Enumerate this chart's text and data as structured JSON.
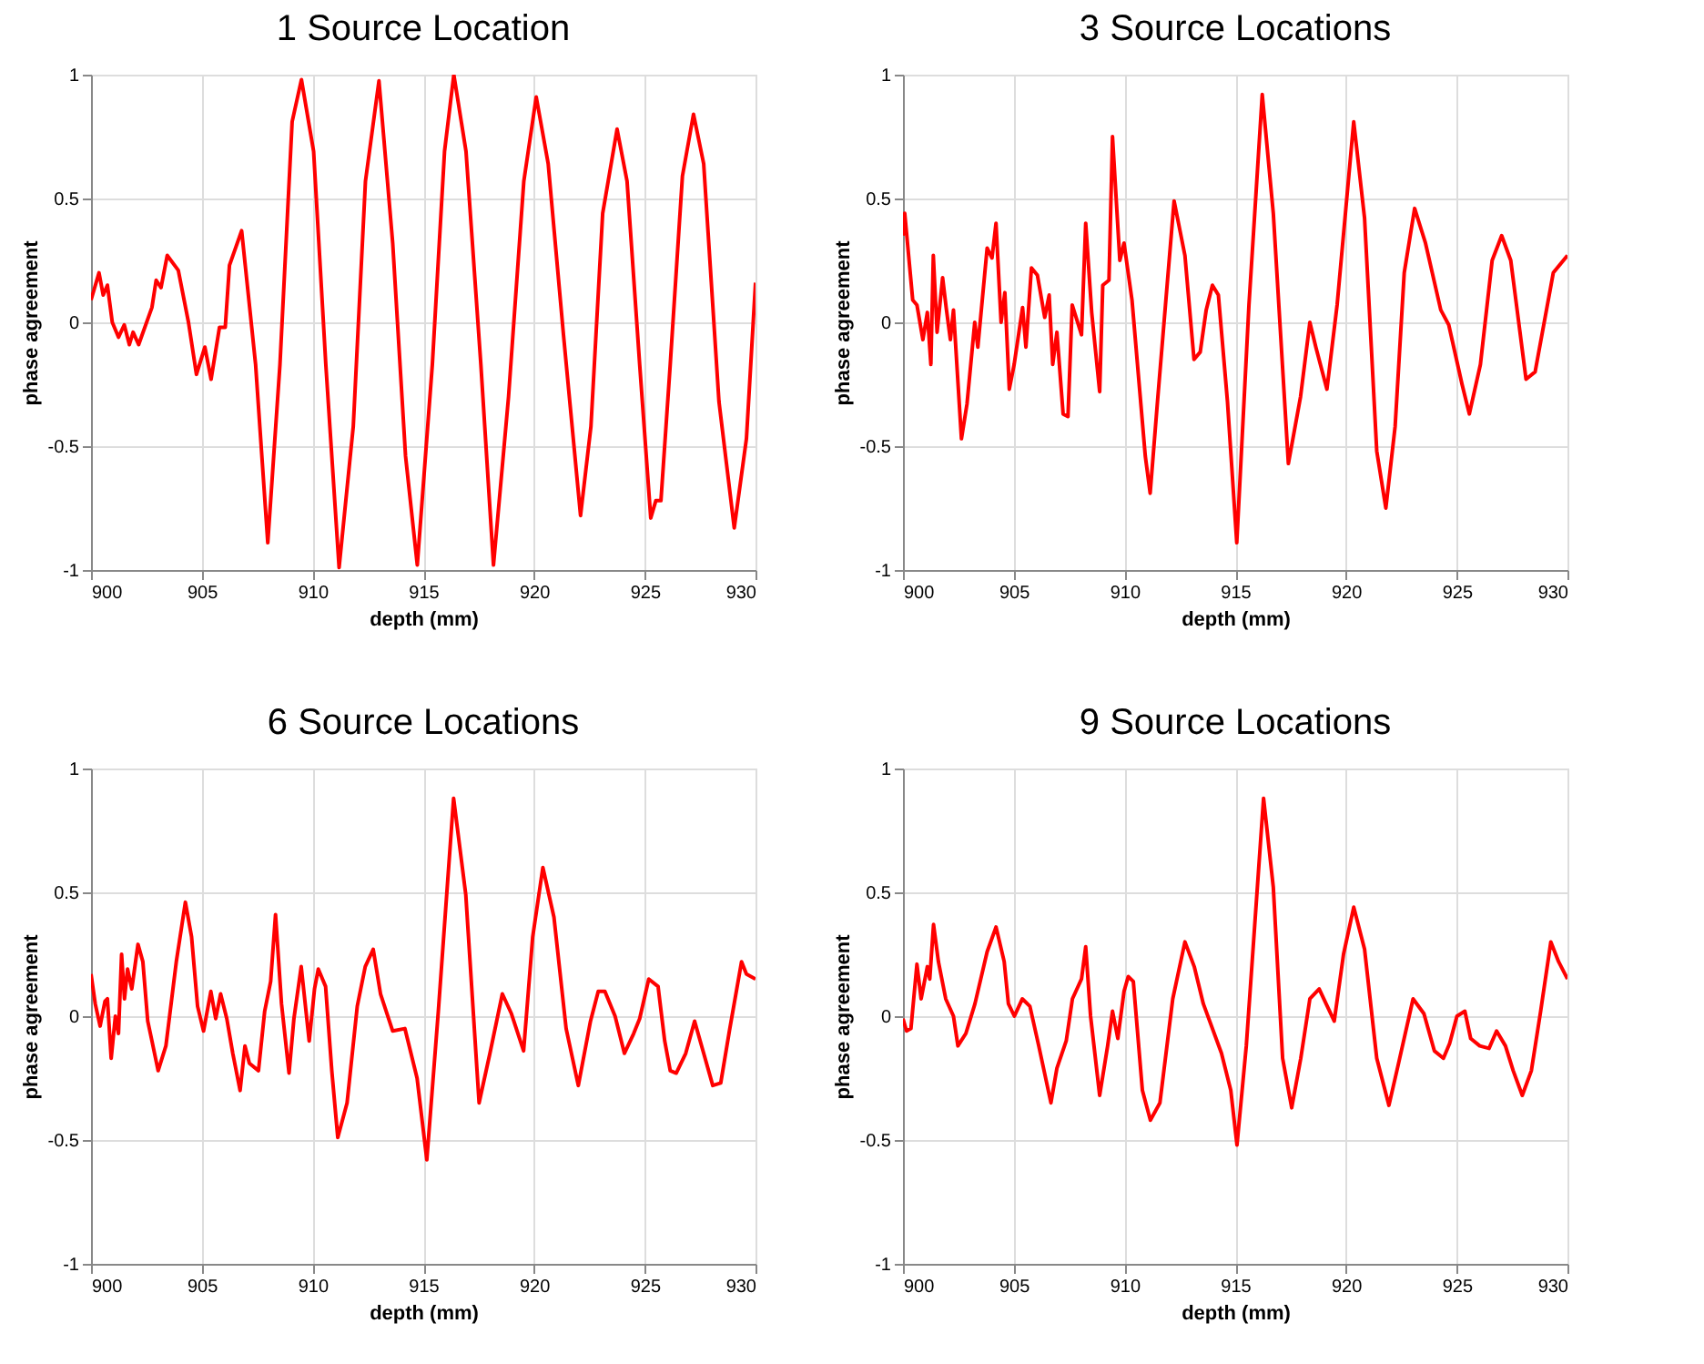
{
  "chart_data": [
    {
      "type": "line",
      "title": "1 Source Location",
      "xlabel": "depth (mm)",
      "ylabel": "phase agreement",
      "xlim": [
        900,
        930
      ],
      "ylim": [
        -1,
        1
      ],
      "xticks": [
        900,
        905,
        910,
        915,
        920,
        925,
        930
      ],
      "yticks": [
        -1,
        -0.5,
        0,
        0.5,
        1
      ],
      "grid": true,
      "series": [
        {
          "color": "#ff0000",
          "x": [
            900,
            900.36,
            900.55,
            900.74,
            900.96,
            901.24,
            901.5,
            901.73,
            901.9,
            902.15,
            902.75,
            902.94,
            903.16,
            903.44,
            903.94,
            904.4,
            904.76,
            905.14,
            905.42,
            905.8,
            906.06,
            906.25,
            906.8,
            907.43,
            907.98,
            908.53,
            909.08,
            909.5,
            910.05,
            910.6,
            911.2,
            911.84,
            912.39,
            913,
            913.62,
            914.2,
            914.73,
            915.41,
            915.96,
            916.38,
            916.93,
            917.6,
            918.17,
            918.85,
            919.54,
            920.1,
            920.64,
            921.33,
            922.1,
            922.57,
            923.1,
            923.75,
            924.2,
            924.77,
            925.27,
            925.5,
            925.73,
            926.15,
            926.7,
            927.2,
            927.66,
            928.35,
            929.04,
            929.59,
            930
          ],
          "values": [
            0.09,
            0.2,
            0.11,
            0.15,
            0,
            -0.06,
            -0.01,
            -0.09,
            -0.04,
            -0.09,
            0.06,
            0.17,
            0.14,
            0.27,
            0.21,
            0,
            -0.21,
            -0.1,
            -0.23,
            -0.02,
            -0.02,
            0.23,
            0.37,
            -0.17,
            -0.89,
            -0.17,
            0.81,
            0.98,
            0.69,
            -0.17,
            -0.99,
            -0.42,
            0.57,
            0.975,
            0.32,
            -0.54,
            -0.98,
            -0.17,
            0.69,
            1.0,
            0.69,
            -0.17,
            -0.98,
            -0.3,
            0.57,
            0.91,
            0.64,
            -0.05,
            -0.78,
            -0.42,
            0.44,
            0.78,
            0.57,
            -0.17,
            -0.79,
            -0.72,
            -0.72,
            -0.17,
            0.59,
            0.84,
            0.64,
            -0.32,
            -0.83,
            -0.47,
            0.16
          ]
        }
      ]
    },
    {
      "type": "line",
      "title": "3 Source Locations",
      "xlabel": "depth (mm)",
      "ylabel": "phase agreement",
      "xlim": [
        900,
        930
      ],
      "ylim": [
        -1,
        1
      ],
      "xticks": [
        900,
        905,
        910,
        915,
        920,
        925,
        930
      ],
      "yticks": [
        -1,
        -0.5,
        0,
        0.5,
        1
      ],
      "grid": true,
      "series": [
        {
          "color": "#ff0000",
          "x": [
            900,
            900.08,
            900.44,
            900.63,
            900.9,
            901.1,
            901.26,
            901.37,
            901.54,
            901.79,
            901.95,
            902.14,
            902.28,
            902.64,
            902.89,
            903.24,
            903.38,
            903.8,
            904.02,
            904.2,
            904.43,
            904.6,
            904.8,
            905.02,
            905.4,
            905.55,
            905.8,
            906.07,
            906.4,
            906.6,
            906.76,
            906.95,
            907.23,
            907.45,
            907.64,
            908.06,
            908.25,
            908.52,
            908.88,
            909.02,
            909.3,
            909.46,
            909.79,
            909.98,
            910.34,
            910.94,
            911.16,
            911.49,
            912.24,
            912.73,
            913.14,
            913.42,
            913.69,
            913.97,
            914.24,
            914.65,
            915.07,
            915.62,
            916.22,
            916.72,
            917.4,
            917.95,
            918.37,
            918.64,
            919.14,
            919.6,
            920.35,
            920.84,
            921.39,
            921.8,
            922.22,
            922.63,
            923.1,
            923.59,
            924.28,
            924.64,
            925.24,
            925.57,
            926.07,
            926.6,
            927.03,
            927.44,
            928.13,
            928.54,
            929.36,
            930
          ],
          "values": [
            0.35,
            0.44,
            0.09,
            0.07,
            -0.07,
            0.04,
            -0.17,
            0.27,
            -0.04,
            0.18,
            0.06,
            -0.07,
            0.05,
            -0.47,
            -0.33,
            0,
            -0.1,
            0.3,
            0.26,
            0.4,
            0,
            0.12,
            -0.27,
            -0.17,
            0.06,
            -0.1,
            0.22,
            0.19,
            0.02,
            0.11,
            -0.17,
            -0.04,
            -0.37,
            -0.38,
            0.07,
            -0.05,
            0.4,
            0.04,
            -0.28,
            0.15,
            0.17,
            0.75,
            0.25,
            0.32,
            0.09,
            -0.54,
            -0.69,
            -0.32,
            0.49,
            0.27,
            -0.15,
            -0.12,
            0.05,
            0.15,
            0.11,
            -0.32,
            -0.89,
            0.07,
            0.92,
            0.44,
            -0.57,
            -0.3,
            0,
            -0.1,
            -0.27,
            0.07,
            0.81,
            0.42,
            -0.52,
            -0.75,
            -0.42,
            0.2,
            0.46,
            0.32,
            0.05,
            -0.01,
            -0.25,
            -0.37,
            -0.17,
            0.25,
            0.35,
            0.25,
            -0.23,
            -0.2,
            0.2,
            0.27
          ]
        }
      ]
    },
    {
      "type": "line",
      "title": "6 Source Locations",
      "xlabel": "depth (mm)",
      "ylabel": "phase agreement",
      "xlim": [
        900,
        930
      ],
      "ylim": [
        -1,
        1
      ],
      "xticks": [
        900,
        905,
        910,
        915,
        920,
        925,
        930
      ],
      "yticks": [
        -1,
        -0.5,
        0,
        0.5,
        1
      ],
      "grid": true,
      "series": [
        {
          "color": "#ff0000",
          "x": [
            900,
            900.19,
            900.41,
            900.63,
            900.74,
            900.91,
            901.1,
            901.24,
            901.38,
            901.51,
            901.65,
            901.84,
            902.12,
            902.34,
            902.56,
            902.75,
            903.03,
            903.38,
            903.85,
            904.26,
            904.54,
            904.81,
            905.08,
            905.41,
            905.63,
            905.85,
            906.13,
            906.4,
            906.73,
            906.95,
            907.15,
            907.56,
            907.84,
            908.11,
            908.33,
            908.6,
            908.94,
            909.16,
            909.49,
            909.85,
            910.09,
            910.26,
            910.59,
            910.87,
            911.14,
            911.56,
            912.02,
            912.38,
            912.74,
            913.07,
            913.62,
            914.17,
            914.72,
            915.16,
            915.68,
            916.37,
            916.92,
            917.52,
            918.01,
            918.57,
            918.98,
            919.53,
            919.94,
            920.4,
            920.9,
            921.45,
            922,
            922.55,
            922.9,
            923.2,
            923.66,
            924.08,
            924.5,
            924.77,
            925.18,
            925.6,
            925.9,
            926.15,
            926.42,
            926.85,
            927.25,
            927.66,
            928.07,
            928.43,
            928.82,
            929.37,
            929.59,
            930
          ],
          "values": [
            0.17,
            0.05,
            -0.04,
            0.06,
            0.07,
            -0.17,
            0,
            -0.07,
            0.25,
            0.07,
            0.19,
            0.11,
            0.29,
            0.22,
            -0.02,
            -0.1,
            -0.22,
            -0.12,
            0.22,
            0.46,
            0.32,
            0.04,
            -0.06,
            0.1,
            -0.01,
            0.09,
            -0.01,
            -0.15,
            -0.3,
            -0.12,
            -0.19,
            -0.22,
            0.02,
            0.14,
            0.41,
            0.05,
            -0.23,
            -0.01,
            0.2,
            -0.1,
            0.11,
            0.19,
            0.12,
            -0.22,
            -0.49,
            -0.35,
            0.04,
            0.2,
            0.27,
            0.09,
            -0.06,
            -0.05,
            -0.25,
            -0.58,
            0.02,
            0.88,
            0.49,
            -0.35,
            -0.15,
            0.09,
            0.01,
            -0.14,
            0.32,
            0.6,
            0.4,
            -0.05,
            -0.28,
            -0.02,
            0.1,
            0.1,
            0,
            -0.15,
            -0.07,
            -0.01,
            0.15,
            0.12,
            -0.1,
            -0.22,
            -0.23,
            -0.15,
            -0.02,
            -0.15,
            -0.28,
            -0.27,
            -0.06,
            0.22,
            0.17,
            0.15
          ]
        }
      ]
    },
    {
      "type": "line",
      "title": "9 Source Locations",
      "xlabel": "depth (mm)",
      "ylabel": "phase agreement",
      "xlim": [
        900,
        930
      ],
      "ylim": [
        -1,
        1
      ],
      "xticks": [
        900,
        905,
        910,
        915,
        920,
        925,
        930
      ],
      "yticks": [
        -1,
        -0.5,
        0,
        0.5,
        1
      ],
      "grid": true,
      "series": [
        {
          "color": "#ff0000",
          "x": [
            900,
            900.16,
            900.36,
            900.63,
            900.82,
            901.1,
            901.21,
            901.38,
            901.6,
            901.93,
            902.28,
            902.48,
            902.84,
            903.25,
            903.8,
            904.2,
            904.57,
            904.76,
            905.03,
            905.39,
            905.73,
            906.13,
            906.68,
            906.95,
            907.37,
            907.65,
            908.06,
            908.25,
            908.47,
            908.88,
            909.24,
            909.46,
            909.7,
            909.98,
            910.17,
            910.4,
            910.81,
            911.17,
            911.6,
            912.18,
            912.73,
            913.15,
            913.56,
            914.38,
            914.8,
            915.08,
            915.5,
            916.28,
            916.72,
            917.14,
            917.55,
            917.96,
            918.37,
            918.79,
            919.47,
            919.89,
            920.35,
            920.84,
            921.39,
            921.94,
            922.35,
            923.03,
            923.52,
            923.99,
            924.4,
            924.68,
            925.01,
            925.37,
            925.63,
            926.04,
            926.46,
            926.8,
            927.2,
            927.55,
            927.96,
            928.37,
            928.79,
            929.25,
            929.6,
            930
          ],
          "values": [
            -0.01,
            -0.06,
            -0.05,
            0.21,
            0.07,
            0.2,
            0.15,
            0.37,
            0.22,
            0.07,
            0,
            -0.12,
            -0.07,
            0.05,
            0.26,
            0.36,
            0.22,
            0.05,
            0,
            0.07,
            0.04,
            -0.12,
            -0.35,
            -0.21,
            -0.1,
            0.07,
            0.15,
            0.28,
            0,
            -0.32,
            -0.12,
            0.02,
            -0.09,
            0.1,
            0.16,
            0.14,
            -0.3,
            -0.42,
            -0.35,
            0.07,
            0.3,
            0.2,
            0.05,
            -0.15,
            -0.3,
            -0.52,
            -0.12,
            0.88,
            0.52,
            -0.17,
            -0.37,
            -0.17,
            0.07,
            0.11,
            -0.02,
            0.25,
            0.44,
            0.27,
            -0.17,
            -0.36,
            -0.2,
            0.07,
            0.01,
            -0.14,
            -0.17,
            -0.11,
            0,
            0.02,
            -0.09,
            -0.12,
            -0.13,
            -0.06,
            -0.12,
            -0.22,
            -0.32,
            -0.22,
            0.02,
            0.3,
            0.22,
            0.15
          ]
        }
      ]
    }
  ]
}
